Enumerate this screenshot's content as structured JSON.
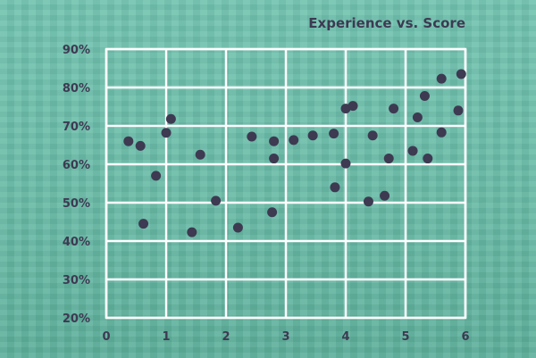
{
  "chart_data": {
    "type": "scatter",
    "title": "Experience vs. Score",
    "xlabel": "",
    "ylabel": "",
    "xlim": [
      0,
      6
    ],
    "ylim": [
      20,
      90
    ],
    "x_ticks": [
      0,
      1,
      2,
      3,
      4,
      5,
      6
    ],
    "x_tick_labels": [
      "0",
      "1",
      "2",
      "3",
      "4",
      "5",
      "6"
    ],
    "y_ticks": [
      20,
      30,
      40,
      50,
      60,
      70,
      80,
      90
    ],
    "y_tick_labels": [
      "20%",
      "30%",
      "40%",
      "50%",
      "60%",
      "70%",
      "80%",
      "90%"
    ],
    "grid": true,
    "colors": {
      "point": "#3d3a52",
      "grid": "#ffffff",
      "text": "#3d3a52",
      "background": "#6fc0ad"
    },
    "points": [
      {
        "x": 0.37,
        "y": 66
      },
      {
        "x": 0.57,
        "y": 64.8
      },
      {
        "x": 0.62,
        "y": 44.5
      },
      {
        "x": 0.83,
        "y": 57
      },
      {
        "x": 1.0,
        "y": 68.2
      },
      {
        "x": 1.08,
        "y": 71.8
      },
      {
        "x": 1.43,
        "y": 42.3
      },
      {
        "x": 1.57,
        "y": 62.5
      },
      {
        "x": 1.83,
        "y": 50.5
      },
      {
        "x": 2.2,
        "y": 43.5
      },
      {
        "x": 2.43,
        "y": 67.2
      },
      {
        "x": 2.77,
        "y": 47.5
      },
      {
        "x": 2.8,
        "y": 66
      },
      {
        "x": 2.8,
        "y": 61.5
      },
      {
        "x": 3.13,
        "y": 66.3
      },
      {
        "x": 3.45,
        "y": 67.5
      },
      {
        "x": 3.8,
        "y": 68
      },
      {
        "x": 3.82,
        "y": 54
      },
      {
        "x": 4.0,
        "y": 74.5
      },
      {
        "x": 4.0,
        "y": 60.2
      },
      {
        "x": 4.12,
        "y": 75.2
      },
      {
        "x": 4.38,
        "y": 50.3
      },
      {
        "x": 4.45,
        "y": 67.5
      },
      {
        "x": 4.65,
        "y": 51.8
      },
      {
        "x": 4.72,
        "y": 61.5
      },
      {
        "x": 4.8,
        "y": 74.5
      },
      {
        "x": 5.12,
        "y": 63.5
      },
      {
        "x": 5.2,
        "y": 72.2
      },
      {
        "x": 5.32,
        "y": 77.8
      },
      {
        "x": 5.37,
        "y": 61.5
      },
      {
        "x": 5.6,
        "y": 68.3
      },
      {
        "x": 5.6,
        "y": 82.3
      },
      {
        "x": 5.88,
        "y": 74
      },
      {
        "x": 5.93,
        "y": 83.5
      }
    ]
  }
}
